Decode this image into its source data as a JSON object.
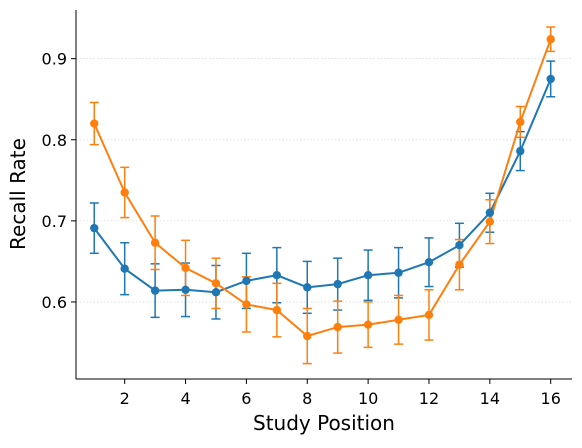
{
  "chart_data": {
    "type": "line",
    "title": "",
    "xlabel": "Study Position",
    "ylabel": "Recall Rate",
    "xlim": [
      0.4,
      16.7
    ],
    "ylim": [
      0.505,
      0.96
    ],
    "xticks": [
      2,
      4,
      6,
      8,
      10,
      12,
      14,
      16
    ],
    "yticks": [
      0.6,
      0.7,
      0.8,
      0.9
    ],
    "ytick_labels": [
      "0.6",
      "0.7",
      "0.8",
      "0.9"
    ],
    "grid": "horizontal dotted",
    "x": [
      1,
      2,
      3,
      4,
      5,
      6,
      7,
      8,
      9,
      10,
      11,
      12,
      13,
      14,
      15,
      16
    ],
    "series": [
      {
        "color": "#1f77b4",
        "values": [
          0.691,
          0.641,
          0.614,
          0.615,
          0.612,
          0.626,
          0.633,
          0.618,
          0.622,
          0.633,
          0.636,
          0.649,
          0.67,
          0.71,
          0.786,
          0.875
        ],
        "error": [
          0.031,
          0.032,
          0.033,
          0.033,
          0.033,
          0.034,
          0.034,
          0.032,
          0.032,
          0.031,
          0.031,
          0.03,
          0.027,
          0.024,
          0.024,
          0.022
        ]
      },
      {
        "color": "#ff7f0e",
        "values": [
          0.82,
          0.735,
          0.673,
          0.642,
          0.623,
          0.597,
          0.59,
          0.558,
          0.569,
          0.572,
          0.578,
          0.584,
          0.646,
          0.699,
          0.822,
          0.924
        ],
        "error": [
          0.026,
          0.031,
          0.033,
          0.034,
          0.031,
          0.034,
          0.033,
          0.034,
          0.032,
          0.028,
          0.03,
          0.031,
          0.031,
          0.027,
          0.019,
          0.015
        ]
      }
    ]
  }
}
